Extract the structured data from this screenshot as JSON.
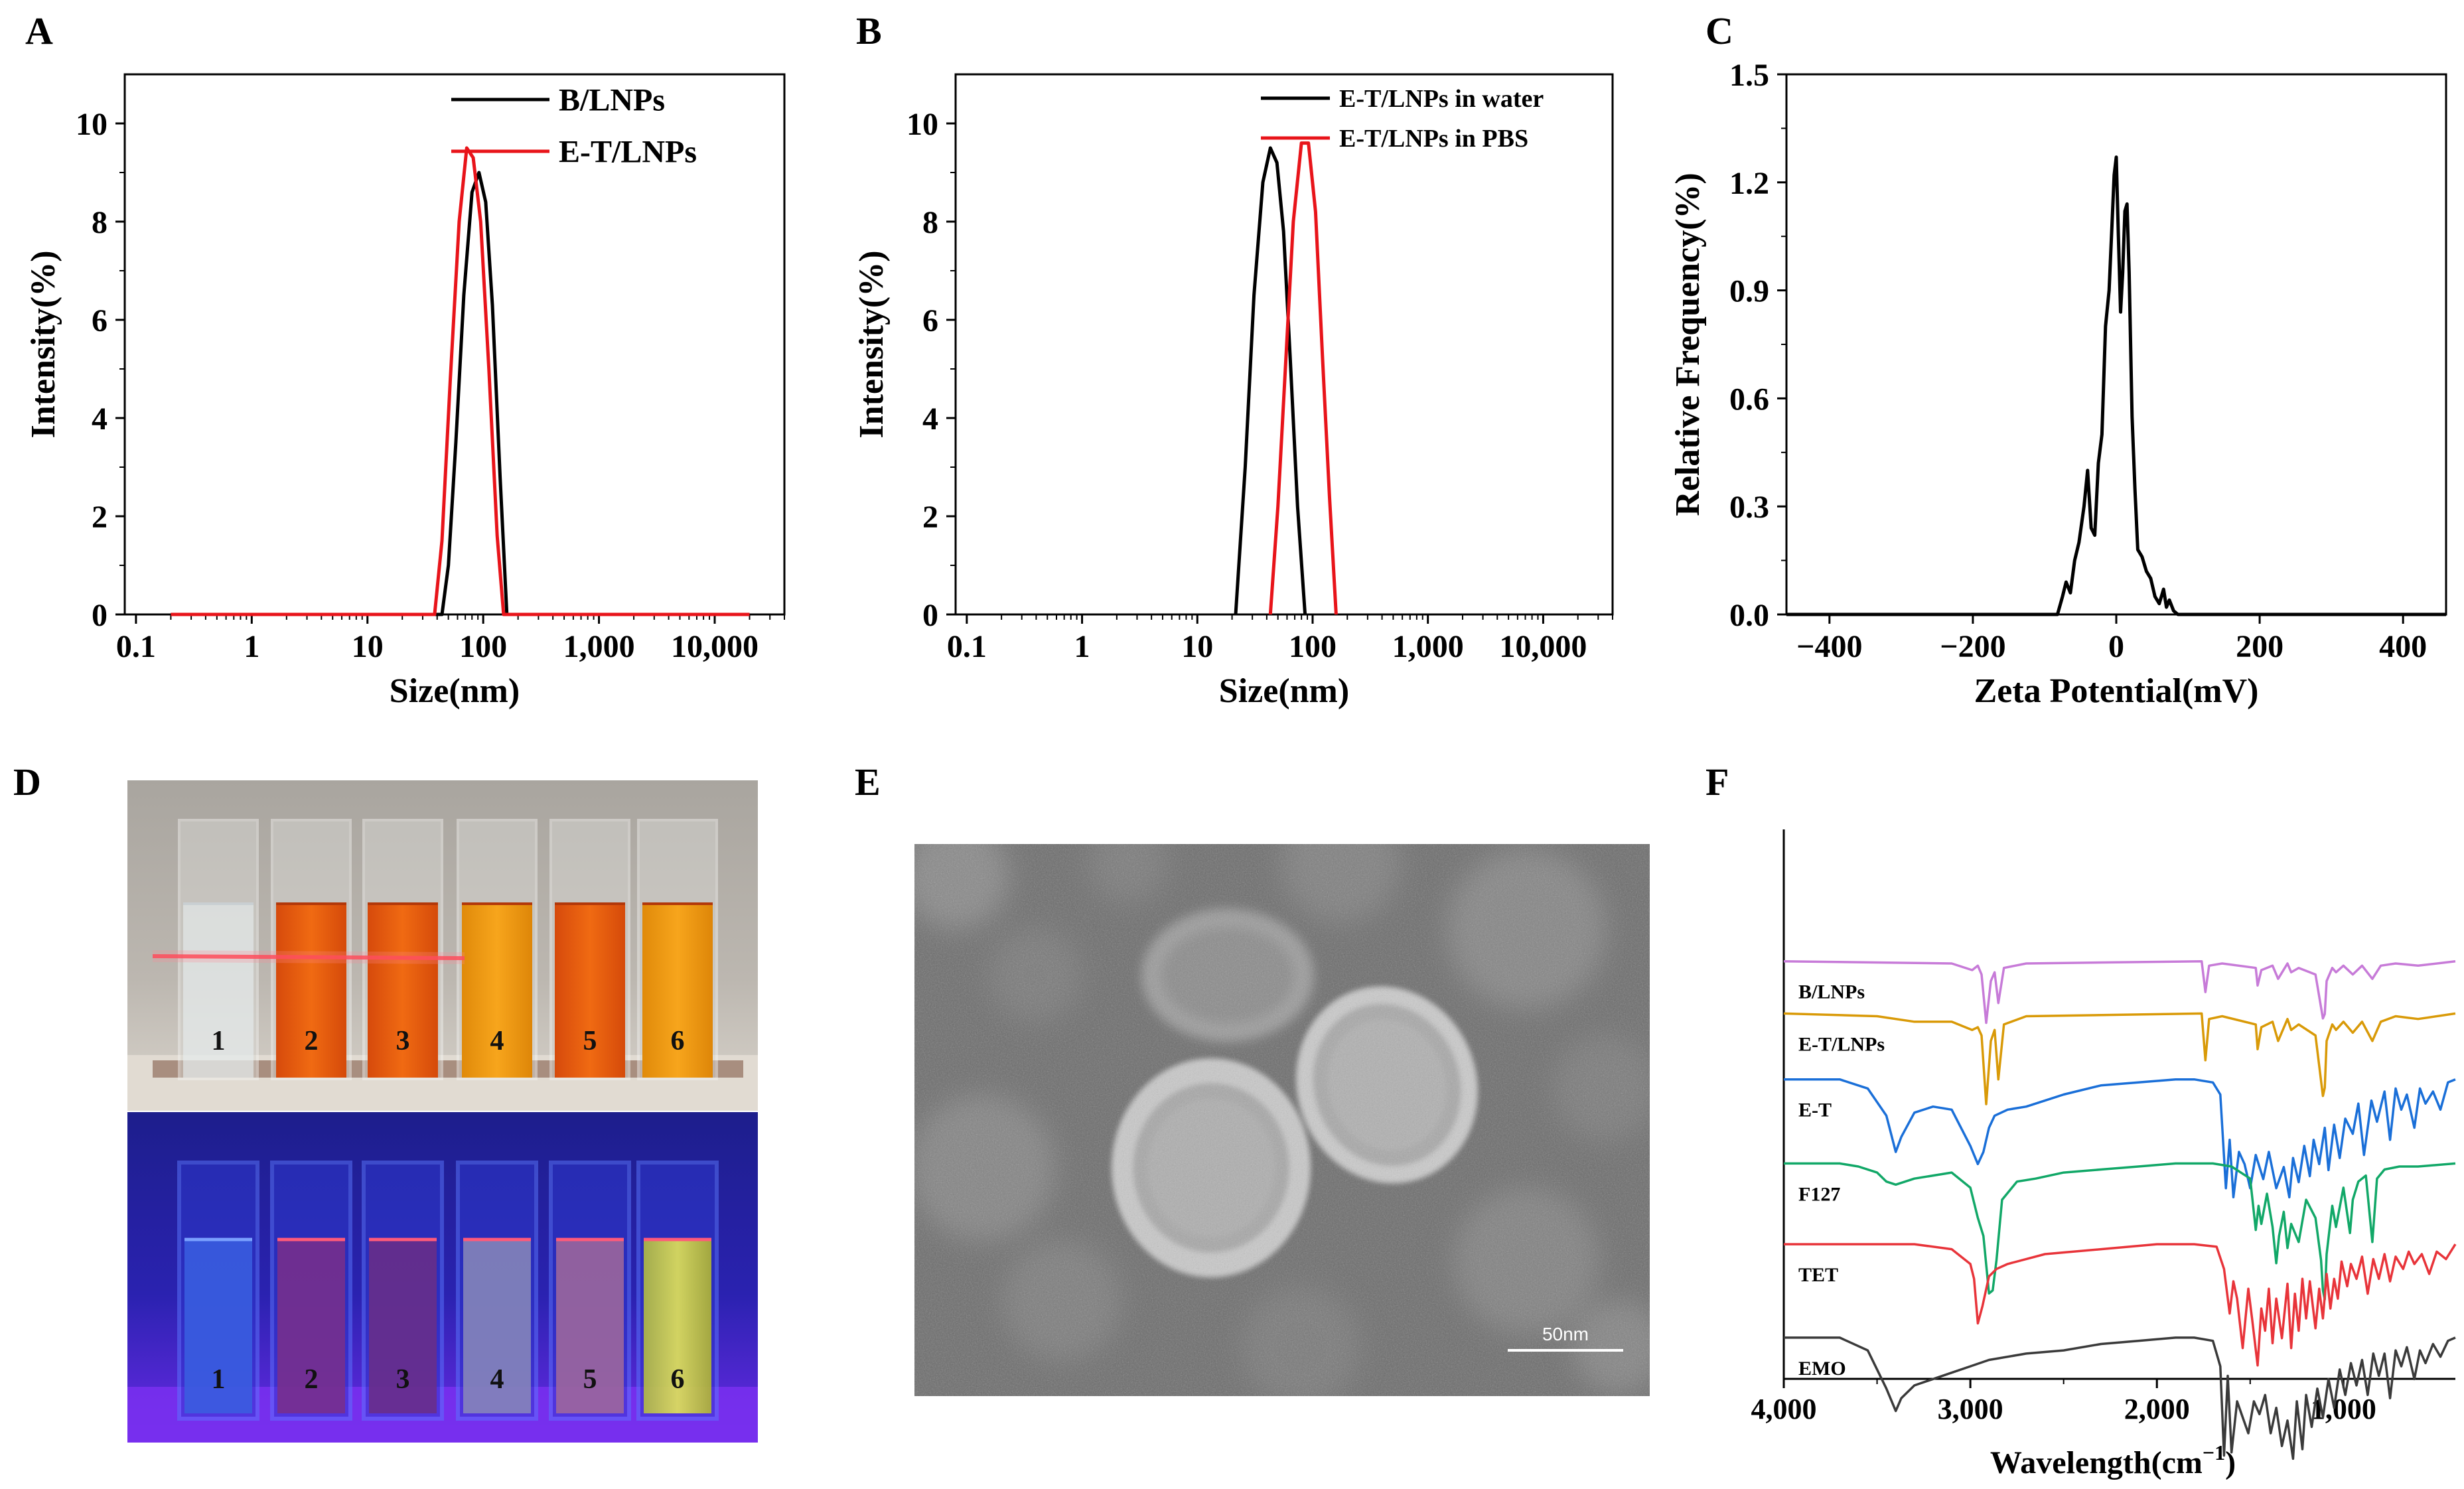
{
  "colors": {
    "black": "#000000",
    "red": "#e8141a",
    "purple": "#c77bd8",
    "orange": "#d99a08",
    "blue": "#1a6fd8",
    "green": "#12a868",
    "red2": "#e8343a",
    "gray": "#3a3a3a"
  },
  "panel_letters": {
    "a": "A",
    "b": "B",
    "c": "C",
    "d": "D",
    "e": "E",
    "f": "F"
  },
  "chart_data": [
    {
      "id": "A",
      "type": "line",
      "xscale": "log",
      "xlabel": "Size(nm)",
      "ylabel": "Intensity(%)",
      "xlim": [
        0.08,
        40000
      ],
      "ylim": [
        0,
        11
      ],
      "xticks": [
        0.1,
        1,
        10,
        100,
        1000,
        10000
      ],
      "xtick_labels": [
        "0.1",
        "1",
        "10",
        "100",
        "1,000",
        "10,000"
      ],
      "yticks": [
        0,
        2,
        4,
        6,
        8,
        10
      ],
      "ytick_labels": [
        "0",
        "2",
        "4",
        "6",
        "8",
        "10"
      ],
      "legend": "top-right",
      "series": [
        {
          "name": "B/LNPs",
          "color_key": "black",
          "x": [
            0.2,
            44,
            50,
            58,
            68,
            80,
            92,
            105,
            120,
            140,
            160,
            20000
          ],
          "y": [
            0,
            0,
            1.0,
            3.5,
            6.5,
            8.6,
            9.0,
            8.4,
            6.3,
            2.8,
            0,
            0
          ]
        },
        {
          "name": "E-T/LNPs",
          "color_key": "red",
          "x": [
            0.2,
            38,
            44,
            52,
            62,
            72,
            82,
            95,
            112,
            132,
            150,
            20000
          ],
          "y": [
            0,
            0,
            1.5,
            4.8,
            8.0,
            9.5,
            9.3,
            8.0,
            5.0,
            1.6,
            0,
            0
          ]
        }
      ]
    },
    {
      "id": "B",
      "type": "line",
      "xscale": "log",
      "xlabel": "Size(nm)",
      "ylabel": "Intensity(%)",
      "xlim": [
        0.08,
        40000
      ],
      "ylim": [
        0,
        11
      ],
      "xticks": [
        0.1,
        1,
        10,
        100,
        1000,
        10000
      ],
      "xtick_labels": [
        "0.1",
        "1",
        "10",
        "100",
        "1,000",
        "10,000"
      ],
      "yticks": [
        0,
        2,
        4,
        6,
        8,
        10
      ],
      "ytick_labels": [
        "0",
        "2",
        "4",
        "6",
        "8",
        "10"
      ],
      "legend": "top-right",
      "series": [
        {
          "name": "E-T/LNPs in water",
          "color_key": "black",
          "x": [
            21.5,
            26,
            31,
            37,
            43,
            49,
            56,
            64,
            74,
            86
          ],
          "y": [
            0,
            3.0,
            6.5,
            8.8,
            9.5,
            9.2,
            7.8,
            5.2,
            2.2,
            0
          ]
        },
        {
          "name": "E-T/LNPs in PBS",
          "color_key": "red",
          "x": [
            43,
            50,
            58,
            68,
            80,
            92,
            106,
            122,
            140,
            160
          ],
          "y": [
            0,
            2.2,
            5.0,
            8.0,
            9.6,
            9.6,
            8.2,
            5.2,
            2.4,
            0
          ]
        }
      ]
    },
    {
      "id": "C",
      "type": "line",
      "xscale": "linear",
      "xlabel": "Zeta Potential(mV)",
      "ylabel": "Relative Frequency(%)",
      "xlim": [
        -460,
        460
      ],
      "ylim": [
        0,
        1.5
      ],
      "xticks": [
        -400,
        -200,
        0,
        200,
        400
      ],
      "xtick_labels": [
        "−400",
        "−200",
        "0",
        "200",
        "400"
      ],
      "yticks": [
        0,
        0.3,
        0.6,
        0.9,
        1.2,
        1.5
      ],
      "ytick_labels": [
        "0.0",
        "0.3",
        "0.6",
        "0.9",
        "1.2",
        "1.5"
      ],
      "series": [
        {
          "name": "zeta",
          "color_key": "black",
          "x": [
            -480,
            -82,
            -75,
            -70,
            -64,
            -58,
            -52,
            -45,
            -40,
            -35,
            -30,
            -25,
            -20,
            -15,
            -10,
            -6,
            -3,
            0,
            3,
            6,
            9,
            12,
            15,
            18,
            22,
            26,
            30,
            36,
            42,
            48,
            54,
            60,
            66,
            70,
            74,
            80,
            86,
            480
          ],
          "y": [
            0,
            0,
            0.05,
            0.09,
            0.06,
            0.15,
            0.2,
            0.3,
            0.4,
            0.24,
            0.22,
            0.42,
            0.5,
            0.8,
            0.9,
            1.08,
            1.22,
            1.27,
            1.05,
            0.84,
            0.95,
            1.12,
            1.14,
            0.95,
            0.55,
            0.35,
            0.18,
            0.16,
            0.12,
            0.1,
            0.05,
            0.03,
            0.07,
            0.02,
            0.04,
            0.01,
            0,
            0
          ]
        }
      ]
    },
    {
      "id": "F",
      "type": "line",
      "xscale": "linear",
      "xlabel": "Wavelength(cm",
      "xlabel_sup": "−1",
      "xlabel_end": ")",
      "xlim": [
        4000,
        400
      ],
      "xticks": [
        4000,
        3000,
        2000,
        1000
      ],
      "xtick_labels": [
        "4,000",
        "3,000",
        "2,000",
        "1,000"
      ],
      "series": [
        {
          "name": "B/LNPs",
          "color_key": "purple",
          "offset": 0.76,
          "scale": 0.04,
          "x": [
            4000,
            3100,
            2990,
            2960,
            2940,
            2915,
            2890,
            2870,
            2850,
            2820,
            2700,
            1760,
            1740,
            1720,
            1650,
            1470,
            1460,
            1440,
            1380,
            1350,
            1300,
            1280,
            1240,
            1150,
            1110,
            1100,
            1090,
            1060,
            1040,
            1000,
            950,
            900,
            845,
            800,
            720,
            600,
            400
          ],
          "y": [
            0.0,
            0.1,
            0.4,
            0.2,
            0.6,
            2.8,
            0.9,
            0.5,
            1.9,
            0.3,
            0.1,
            0.0,
            1.4,
            0.2,
            0.1,
            0.3,
            1.1,
            0.4,
            0.2,
            0.8,
            0.1,
            0.5,
            0.3,
            0.6,
            2.6,
            2.4,
            0.9,
            0.3,
            0.5,
            0.2,
            0.6,
            0.2,
            0.8,
            0.2,
            0.1,
            0.2,
            0.0
          ]
        },
        {
          "name": "E-T/LNPs",
          "color_key": "orange",
          "offset": 0.665,
          "scale": 0.05,
          "x": [
            4000,
            3500,
            3300,
            3100,
            2990,
            2960,
            2940,
            2915,
            2890,
            2870,
            2850,
            2820,
            2700,
            1760,
            1740,
            1720,
            1650,
            1470,
            1460,
            1440,
            1380,
            1350,
            1300,
            1280,
            1240,
            1150,
            1110,
            1100,
            1090,
            1060,
            1040,
            1000,
            950,
            900,
            845,
            800,
            720,
            600,
            400
          ],
          "y": [
            0.0,
            0.1,
            0.3,
            0.3,
            0.6,
            0.5,
            0.8,
            3.3,
            1.0,
            0.6,
            2.4,
            0.4,
            0.1,
            0.0,
            1.7,
            0.2,
            0.1,
            0.4,
            1.3,
            0.5,
            0.3,
            1.0,
            0.2,
            0.6,
            0.4,
            0.8,
            3.0,
            2.7,
            1.0,
            0.4,
            0.6,
            0.3,
            0.7,
            0.3,
            1.0,
            0.3,
            0.1,
            0.2,
            0.0
          ]
        },
        {
          "name": "E-T",
          "color_key": "blue",
          "offset": 0.545,
          "scale": 0.055,
          "x": [
            4000,
            3700,
            3550,
            3450,
            3400,
            3370,
            3300,
            3200,
            3100,
            3000,
            2960,
            2930,
            2900,
            2870,
            2800,
            2700,
            2500,
            2300,
            2100,
            1900,
            1800,
            1700,
            1660,
            1630,
            1610,
            1590,
            1560,
            1530,
            1500,
            1470,
            1430,
            1400,
            1360,
            1320,
            1290,
            1270,
            1240,
            1210,
            1180,
            1160,
            1130,
            1100,
            1080,
            1050,
            1020,
            990,
            950,
            920,
            890,
            850,
            820,
            780,
            750,
            720,
            690,
            660,
            620,
            590,
            560,
            520,
            480,
            440,
            400
          ],
          "y": [
            0.0,
            0.0,
            0.3,
            1.2,
            2.4,
            1.9,
            1.1,
            0.9,
            1.0,
            2.2,
            2.8,
            2.4,
            1.6,
            1.2,
            1.0,
            0.9,
            0.5,
            0.2,
            0.1,
            0.0,
            0.0,
            0.1,
            0.5,
            3.6,
            2.0,
            3.9,
            2.4,
            2.8,
            3.6,
            2.5,
            3.3,
            2.4,
            3.6,
            2.9,
            3.9,
            2.6,
            3.4,
            2.2,
            3.2,
            2.0,
            2.8,
            1.6,
            3.0,
            1.5,
            2.6,
            1.3,
            1.8,
            0.8,
            2.5,
            0.7,
            1.4,
            0.4,
            2.0,
            0.3,
            1.0,
            0.5,
            1.6,
            0.3,
            0.8,
            0.4,
            1.0,
            0.1,
            0.0
          ]
        },
        {
          "name": "F127",
          "color_key": "green",
          "offset": 0.392,
          "scale": 0.055,
          "x": [
            4000,
            3700,
            3600,
            3500,
            3450,
            3400,
            3300,
            3100,
            3000,
            2960,
            2930,
            2900,
            2880,
            2860,
            2830,
            2750,
            2650,
            2500,
            2300,
            2100,
            1900,
            1700,
            1600,
            1500,
            1470,
            1455,
            1440,
            1410,
            1380,
            1360,
            1345,
            1320,
            1300,
            1280,
            1240,
            1200,
            1150,
            1120,
            1110,
            1100,
            1090,
            1060,
            1040,
            1000,
            965,
            950,
            920,
            880,
            845,
            820,
            780,
            700,
            600,
            400
          ],
          "y": [
            0.0,
            0.0,
            0.1,
            0.3,
            0.6,
            0.7,
            0.5,
            0.3,
            0.8,
            1.8,
            2.4,
            4.3,
            4.2,
            3.2,
            1.2,
            0.6,
            0.5,
            0.3,
            0.2,
            0.1,
            0.0,
            0.0,
            0.1,
            0.5,
            2.2,
            1.4,
            2.0,
            1.0,
            2.1,
            3.3,
            2.4,
            1.6,
            2.8,
            2.0,
            2.6,
            1.2,
            1.8,
            3.2,
            4.2,
            4.5,
            3.0,
            1.4,
            2.1,
            0.8,
            2.3,
            1.2,
            0.6,
            0.4,
            2.6,
            0.5,
            0.2,
            0.1,
            0.1,
            0.0
          ]
        },
        {
          "name": "TET",
          "color_key": "red2",
          "offset": 0.245,
          "scale": 0.045,
          "x": [
            4000,
            3300,
            3100,
            3000,
            2980,
            2960,
            2935,
            2900,
            2860,
            2800,
            2600,
            2300,
            2000,
            1800,
            1680,
            1640,
            1610,
            1590,
            1570,
            1540,
            1510,
            1490,
            1460,
            1440,
            1420,
            1400,
            1380,
            1360,
            1330,
            1300,
            1280,
            1260,
            1240,
            1220,
            1200,
            1180,
            1150,
            1130,
            1110,
            1090,
            1070,
            1050,
            1030,
            1010,
            980,
            960,
            930,
            900,
            870,
            840,
            810,
            780,
            750,
            720,
            680,
            650,
            620,
            580,
            540,
            500,
            450,
            400
          ],
          "y": [
            0.0,
            0.0,
            0.2,
            0.8,
            1.4,
            3.2,
            2.5,
            1.3,
            1.0,
            0.8,
            0.4,
            0.2,
            0.0,
            0.0,
            0.1,
            1.0,
            2.8,
            1.5,
            2.2,
            4.2,
            1.8,
            3.0,
            4.9,
            2.6,
            3.5,
            1.8,
            4.0,
            2.2,
            3.8,
            1.6,
            4.2,
            2.0,
            3.5,
            1.4,
            3.0,
            1.5,
            3.4,
            1.8,
            3.0,
            1.2,
            2.6,
            1.4,
            2.2,
            0.7,
            1.7,
            0.8,
            1.4,
            0.5,
            2.0,
            0.6,
            1.4,
            0.4,
            1.5,
            0.5,
            1.0,
            0.3,
            0.8,
            0.4,
            1.2,
            0.3,
            0.6,
            0.0
          ]
        },
        {
          "name": "EMO",
          "color_key": "gray",
          "offset": 0.075,
          "scale": 0.058,
          "x": [
            4000,
            3700,
            3550,
            3450,
            3400,
            3370,
            3300,
            3200,
            3100,
            3000,
            2900,
            2700,
            2500,
            2300,
            2100,
            1900,
            1800,
            1700,
            1660,
            1640,
            1620,
            1600,
            1570,
            1540,
            1510,
            1480,
            1450,
            1420,
            1390,
            1360,
            1330,
            1300,
            1270,
            1250,
            1220,
            1200,
            1170,
            1140,
            1110,
            1080,
            1050,
            1020,
            990,
            960,
            930,
            900,
            870,
            840,
            810,
            780,
            750,
            720,
            690,
            660,
            620,
            590,
            560,
            520,
            480,
            440,
            400
          ],
          "y": [
            0.0,
            0.0,
            0.4,
            1.6,
            2.3,
            1.9,
            1.5,
            1.3,
            1.1,
            0.9,
            0.7,
            0.5,
            0.4,
            0.2,
            0.1,
            0.0,
            0.0,
            0.1,
            0.9,
            3.7,
            1.2,
            3.6,
            2.0,
            2.5,
            3.0,
            2.0,
            2.4,
            1.8,
            3.0,
            2.2,
            3.4,
            2.6,
            3.8,
            2.0,
            3.5,
            1.8,
            2.8,
            1.6,
            2.5,
            1.3,
            2.2,
            1.0,
            1.8,
            0.8,
            1.5,
            0.7,
            1.8,
            0.5,
            1.2,
            0.5,
            1.9,
            0.4,
            0.9,
            0.3,
            1.3,
            0.4,
            0.8,
            0.2,
            0.6,
            0.1,
            0.0
          ]
        }
      ]
    }
  ],
  "photo_d": {
    "cuvette_labels": [
      "1",
      "2",
      "3",
      "4",
      "5",
      "6"
    ]
  },
  "sem_e": {
    "scalebar_label": "50nm"
  }
}
